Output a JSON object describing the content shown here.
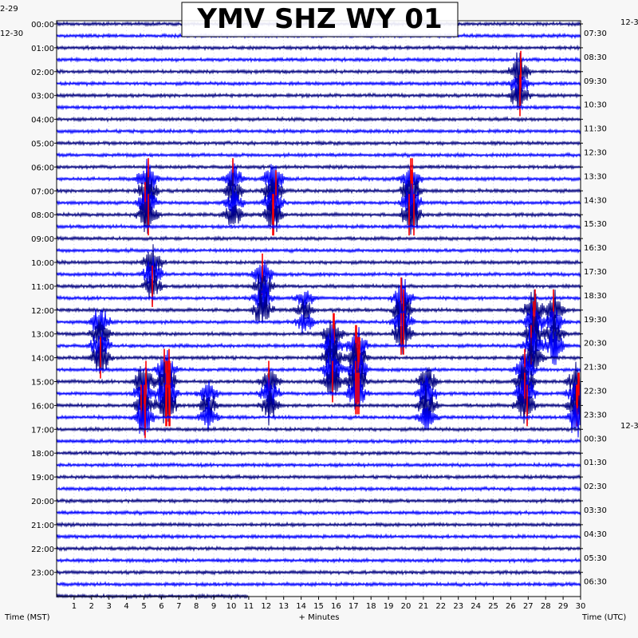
{
  "chart_data": {
    "type": "line",
    "title": "YMV SHZ WY 01",
    "left_dates": [
      "2-29",
      "12-30"
    ],
    "right_dates": [
      "12-3",
      "12-3"
    ],
    "left_ticks": [
      "00:00",
      "01:00",
      "02:00",
      "03:00",
      "04:00",
      "05:00",
      "06:00",
      "07:00",
      "08:00",
      "09:00",
      "10:00",
      "11:00",
      "12:00",
      "13:00",
      "14:00",
      "15:00",
      "16:00",
      "17:00",
      "18:00",
      "19:00",
      "20:00",
      "21:00",
      "22:00",
      "23:00"
    ],
    "right_ticks": [
      "07:30",
      "08:30",
      "09:30",
      "10:30",
      "11:30",
      "12:30",
      "13:30",
      "14:30",
      "15:30",
      "16:30",
      "17:30",
      "18:30",
      "19:30",
      "20:30",
      "21:30",
      "22:30",
      "23:30",
      "00:30",
      "01:30",
      "02:30",
      "03:30",
      "04:30",
      "05:30",
      "06:30"
    ],
    "x_ticks": [
      "1",
      "2",
      "3",
      "4",
      "5",
      "6",
      "7",
      "8",
      "9",
      "10",
      "11",
      "12",
      "13",
      "14",
      "15",
      "16",
      "17",
      "18",
      "19",
      "20",
      "21",
      "22",
      "23",
      "24",
      "25",
      "26",
      "27",
      "28",
      "29",
      "30"
    ],
    "xlabel": "+ Minutes",
    "left_axis_label": "Time (MST)",
    "right_axis_label": "Time (UTC)",
    "xlim": [
      0,
      30
    ],
    "trace_count": 49,
    "last_trace_end_minute": 11,
    "colors": [
      "#000080",
      "#0000ff"
    ],
    "clip_color": "#ff0000",
    "events": [
      {
        "start_row": 4,
        "end_row": 6,
        "minute": 26.5,
        "amplitude": 3.5
      },
      {
        "start_row": 13,
        "end_row": 16,
        "minute": 5.2,
        "amplitude": 4
      },
      {
        "start_row": 13,
        "end_row": 16,
        "minute": 10.1,
        "amplitude": 3
      },
      {
        "start_row": 13,
        "end_row": 16,
        "minute": 12.4,
        "amplitude": 4
      },
      {
        "start_row": 13,
        "end_row": 16,
        "minute": 20.3,
        "amplitude": 4
      },
      {
        "start_row": 20,
        "end_row": 22,
        "minute": 5.5,
        "amplitude": 3
      },
      {
        "start_row": 21,
        "end_row": 24,
        "minute": 11.8,
        "amplitude": 3.5
      },
      {
        "start_row": 23,
        "end_row": 25,
        "minute": 14.2,
        "amplitude": 2
      },
      {
        "start_row": 23,
        "end_row": 26,
        "minute": 19.8,
        "amplitude": 4
      },
      {
        "start_row": 24,
        "end_row": 28,
        "minute": 27.3,
        "amplitude": 4
      },
      {
        "start_row": 24,
        "end_row": 27,
        "minute": 28.5,
        "amplitude": 3.5
      },
      {
        "start_row": 25,
        "end_row": 28,
        "minute": 2.5,
        "amplitude": 3.5
      },
      {
        "start_row": 26,
        "end_row": 30,
        "minute": 15.8,
        "amplitude": 4
      },
      {
        "start_row": 27,
        "end_row": 31,
        "minute": 17.2,
        "amplitude": 4.5
      },
      {
        "start_row": 29,
        "end_row": 32,
        "minute": 6.3,
        "amplitude": 5
      },
      {
        "start_row": 29,
        "end_row": 32,
        "minute": 26.8,
        "amplitude": 4.5
      },
      {
        "start_row": 30,
        "end_row": 33,
        "minute": 5.0,
        "amplitude": 4
      },
      {
        "start_row": 30,
        "end_row": 32,
        "minute": 12.2,
        "amplitude": 3
      },
      {
        "start_row": 30,
        "end_row": 33,
        "minute": 21.2,
        "amplitude": 3.5
      },
      {
        "start_row": 30,
        "end_row": 33,
        "minute": 29.8,
        "amplitude": 4
      },
      {
        "start_row": 31,
        "end_row": 33,
        "minute": 8.7,
        "amplitude": 2.5
      }
    ]
  }
}
